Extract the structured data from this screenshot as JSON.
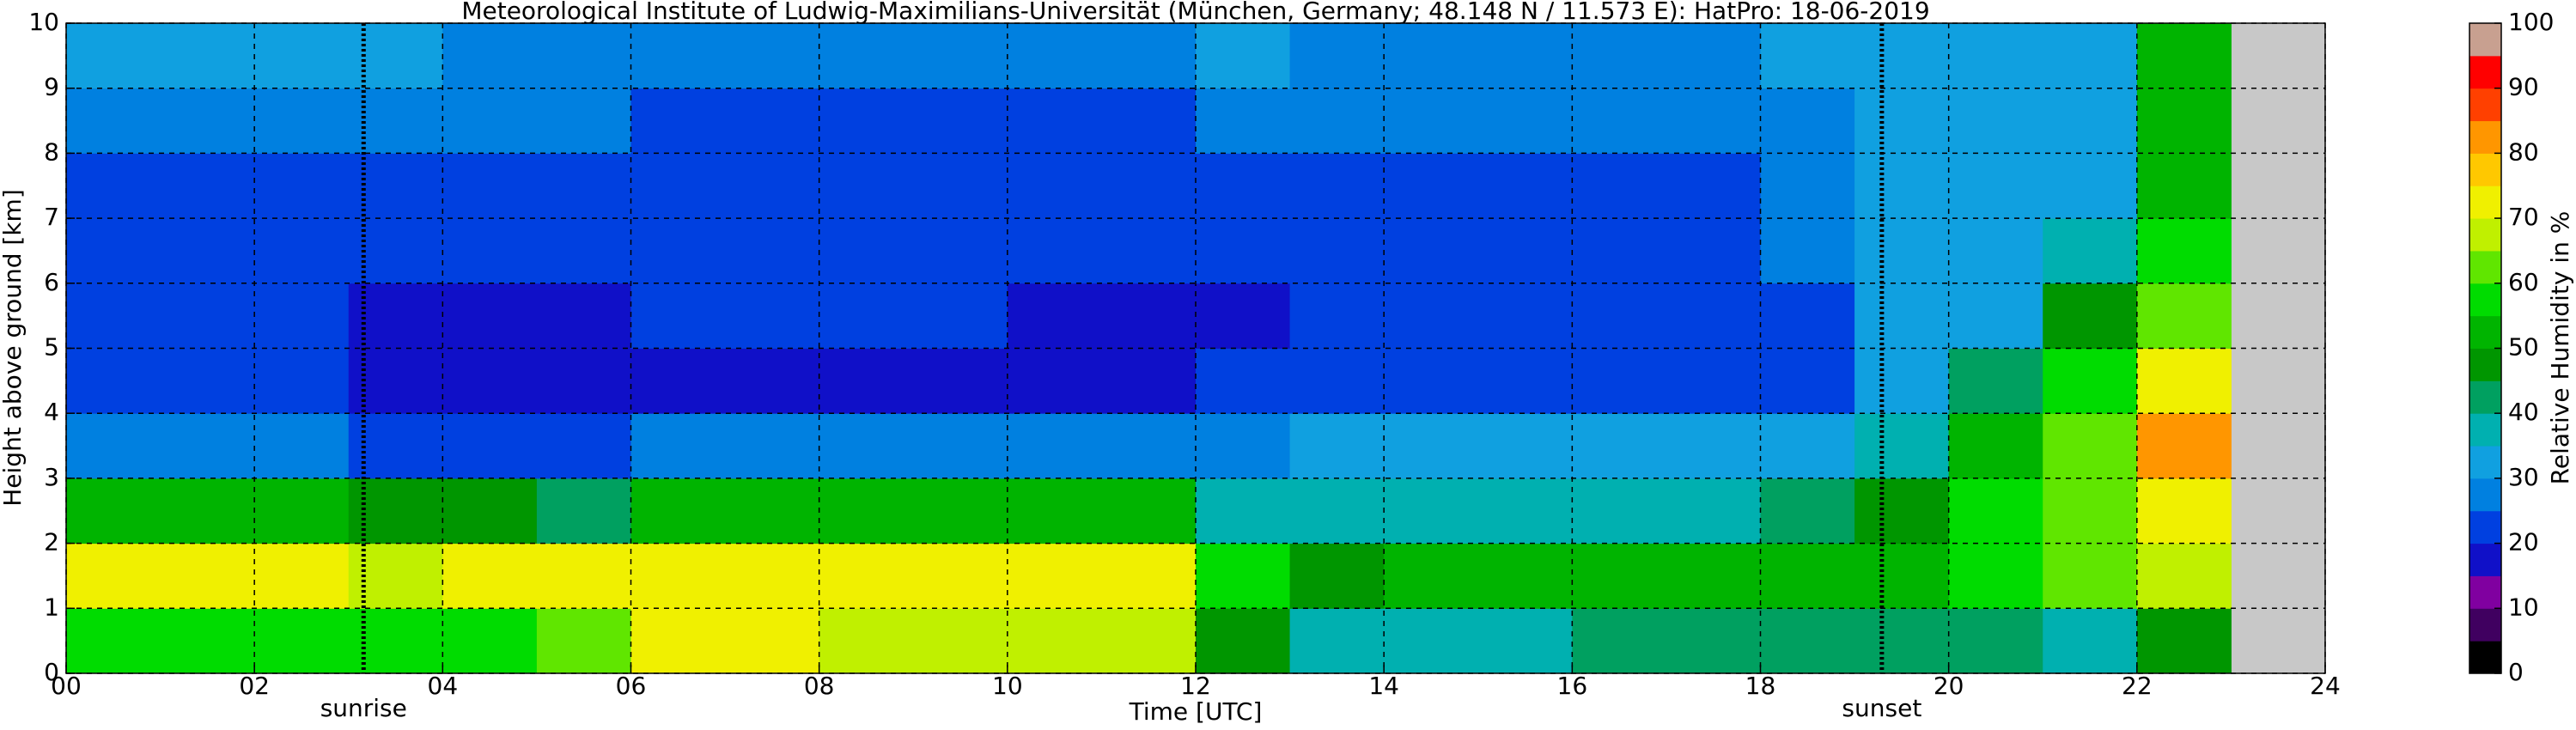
{
  "chart_data": {
    "type": "heatmap",
    "title": "Meteorological Institute of Ludwig-Maximilians-Universität (München, Germany; 48.148 N / 11.573 E):    HatPro: 18-06-2019",
    "xlabel": "Time [UTC]",
    "ylabel": "Height above ground [km]",
    "colorbar_label": "Relative Humidity in %",
    "x_edges": [
      0,
      1,
      2,
      3,
      4,
      5,
      6,
      7,
      8,
      9,
      10,
      11,
      12,
      13,
      14,
      15,
      16,
      17,
      18,
      19,
      20,
      21,
      22,
      23
    ],
    "y_edges": [
      0,
      1,
      2,
      3,
      4,
      5,
      6,
      7,
      8,
      9,
      10
    ],
    "z": [
      [
        58,
        58,
        58,
        55,
        55,
        60,
        72,
        70,
        68,
        66,
        65,
        66,
        45,
        38,
        38,
        38,
        40,
        40,
        42,
        40,
        40,
        38,
        45
      ],
      [
        70,
        70,
        70,
        68,
        70,
        72,
        74,
        72,
        72,
        72,
        72,
        73,
        55,
        48,
        50,
        50,
        50,
        50,
        50,
        50,
        55,
        60,
        68
      ],
      [
        50,
        52,
        52,
        48,
        45,
        42,
        50,
        52,
        52,
        52,
        52,
        52,
        38,
        36,
        36,
        38,
        38,
        38,
        42,
        48,
        58,
        62,
        74
      ],
      [
        28,
        28,
        28,
        22,
        22,
        22,
        28,
        28,
        28,
        28,
        25,
        25,
        28,
        30,
        32,
        30,
        30,
        30,
        32,
        36,
        52,
        60,
        80
      ],
      [
        20,
        20,
        20,
        16,
        15,
        15,
        18,
        19,
        19,
        19,
        16,
        15,
        20,
        22,
        24,
        22,
        22,
        22,
        24,
        30,
        40,
        55,
        72
      ],
      [
        20,
        20,
        20,
        17,
        15,
        16,
        20,
        20,
        20,
        20,
        17,
        17,
        18,
        20,
        22,
        20,
        20,
        22,
        24,
        30,
        32,
        45,
        62
      ],
      [
        22,
        22,
        22,
        20,
        20,
        20,
        20,
        20,
        20,
        20,
        20,
        20,
        20,
        20,
        20,
        22,
        22,
        22,
        26,
        30,
        30,
        38,
        56
      ],
      [
        24,
        24,
        24,
        24,
        22,
        22,
        22,
        22,
        22,
        22,
        22,
        22,
        22,
        22,
        22,
        24,
        24,
        24,
        28,
        30,
        30,
        34,
        52
      ],
      [
        28,
        28,
        28,
        28,
        26,
        26,
        24,
        24,
        24,
        24,
        24,
        24,
        26,
        26,
        26,
        26,
        26,
        26,
        28,
        30,
        30,
        32,
        50
      ],
      [
        30,
        30,
        30,
        30,
        28,
        28,
        26,
        26,
        26,
        26,
        28,
        28,
        30,
        28,
        28,
        28,
        28,
        28,
        30,
        30,
        30,
        32,
        50
      ]
    ],
    "xlim": [
      0,
      24
    ],
    "ylim": [
      0,
      10
    ],
    "zlim": [
      0,
      100
    ],
    "xticks": [
      {
        "value": 0,
        "label": "00"
      },
      {
        "value": 2,
        "label": "02"
      },
      {
        "value": 4,
        "label": "04"
      },
      {
        "value": 6,
        "label": "06"
      },
      {
        "value": 8,
        "label": "08"
      },
      {
        "value": 10,
        "label": "10"
      },
      {
        "value": 12,
        "label": "12"
      },
      {
        "value": 14,
        "label": "14"
      },
      {
        "value": 16,
        "label": "16"
      },
      {
        "value": 18,
        "label": "18"
      },
      {
        "value": 20,
        "label": "20"
      },
      {
        "value": 22,
        "label": "22"
      },
      {
        "value": 24,
        "label": "24"
      }
    ],
    "yticks": [
      0,
      1,
      2,
      3,
      4,
      5,
      6,
      7,
      8,
      9,
      10
    ],
    "colorbar_ticks": [
      0,
      10,
      20,
      30,
      40,
      50,
      60,
      70,
      80,
      90,
      100
    ],
    "colorscale": [
      "#000000",
      "#400060",
      "#8000a0",
      "#1010c8",
      "#0040e0",
      "#0080e0",
      "#10a0e0",
      "#00b0b0",
      "#00a060",
      "#009600",
      "#00b400",
      "#00dc00",
      "#60e600",
      "#c0f000",
      "#f0f000",
      "#ffc800",
      "#ff9600",
      "#ff4000",
      "#ff0000",
      "#c8a090"
    ],
    "missing_color": "#c8c8c8",
    "grid": true,
    "annotations": [
      {
        "text": "sunrise",
        "x": 3.16
      },
      {
        "text": "sunset",
        "x": 19.29
      }
    ]
  }
}
